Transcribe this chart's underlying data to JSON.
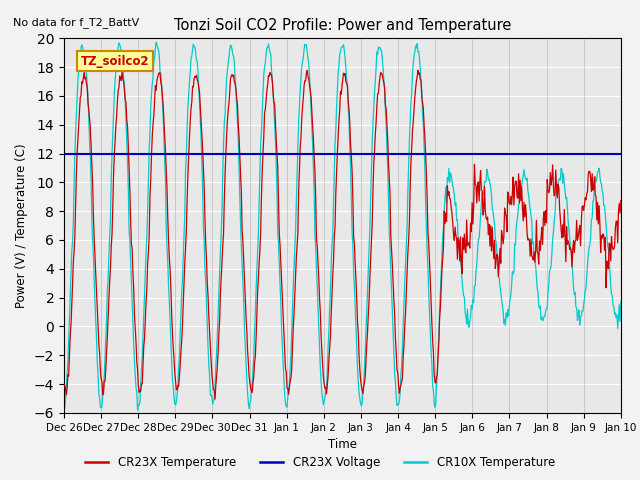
{
  "title": "Tonzi Soil CO2 Profile: Power and Temperature",
  "subtitle": "No data for f_T2_BattV",
  "ylabel": "Power (V) / Temperature (C)",
  "xlabel": "Time",
  "ylim": [
    -6,
    20
  ],
  "yticks": [
    -6,
    -4,
    -2,
    0,
    2,
    4,
    6,
    8,
    10,
    12,
    14,
    16,
    18,
    20
  ],
  "voltage_value": 12.0,
  "legend_entries": [
    "CR23X Temperature",
    "CR23X Voltage",
    "CR10X Temperature"
  ],
  "cr23x_color": "#cc0000",
  "cr10x_color": "#00cccc",
  "voltage_color": "#0000bb",
  "bg_color": "#e8e8e8",
  "fig_bg_color": "#f2f2f2",
  "annotation_text": "TZ_soilco2",
  "annotation_bg": "#ffff99",
  "annotation_border": "#cc8800",
  "tick_labels": [
    "Dec 26",
    "Dec 27",
    "Dec 28",
    "Dec 29",
    "Dec 30",
    "Dec 31",
    "Jan 1",
    "Jan 2",
    "Jan 3",
    "Jan 4",
    "Jan 5",
    "Jan 6",
    "Jan 7",
    "Jan 8",
    "Jan 9",
    "Jan 10"
  ],
  "n_days": 15
}
